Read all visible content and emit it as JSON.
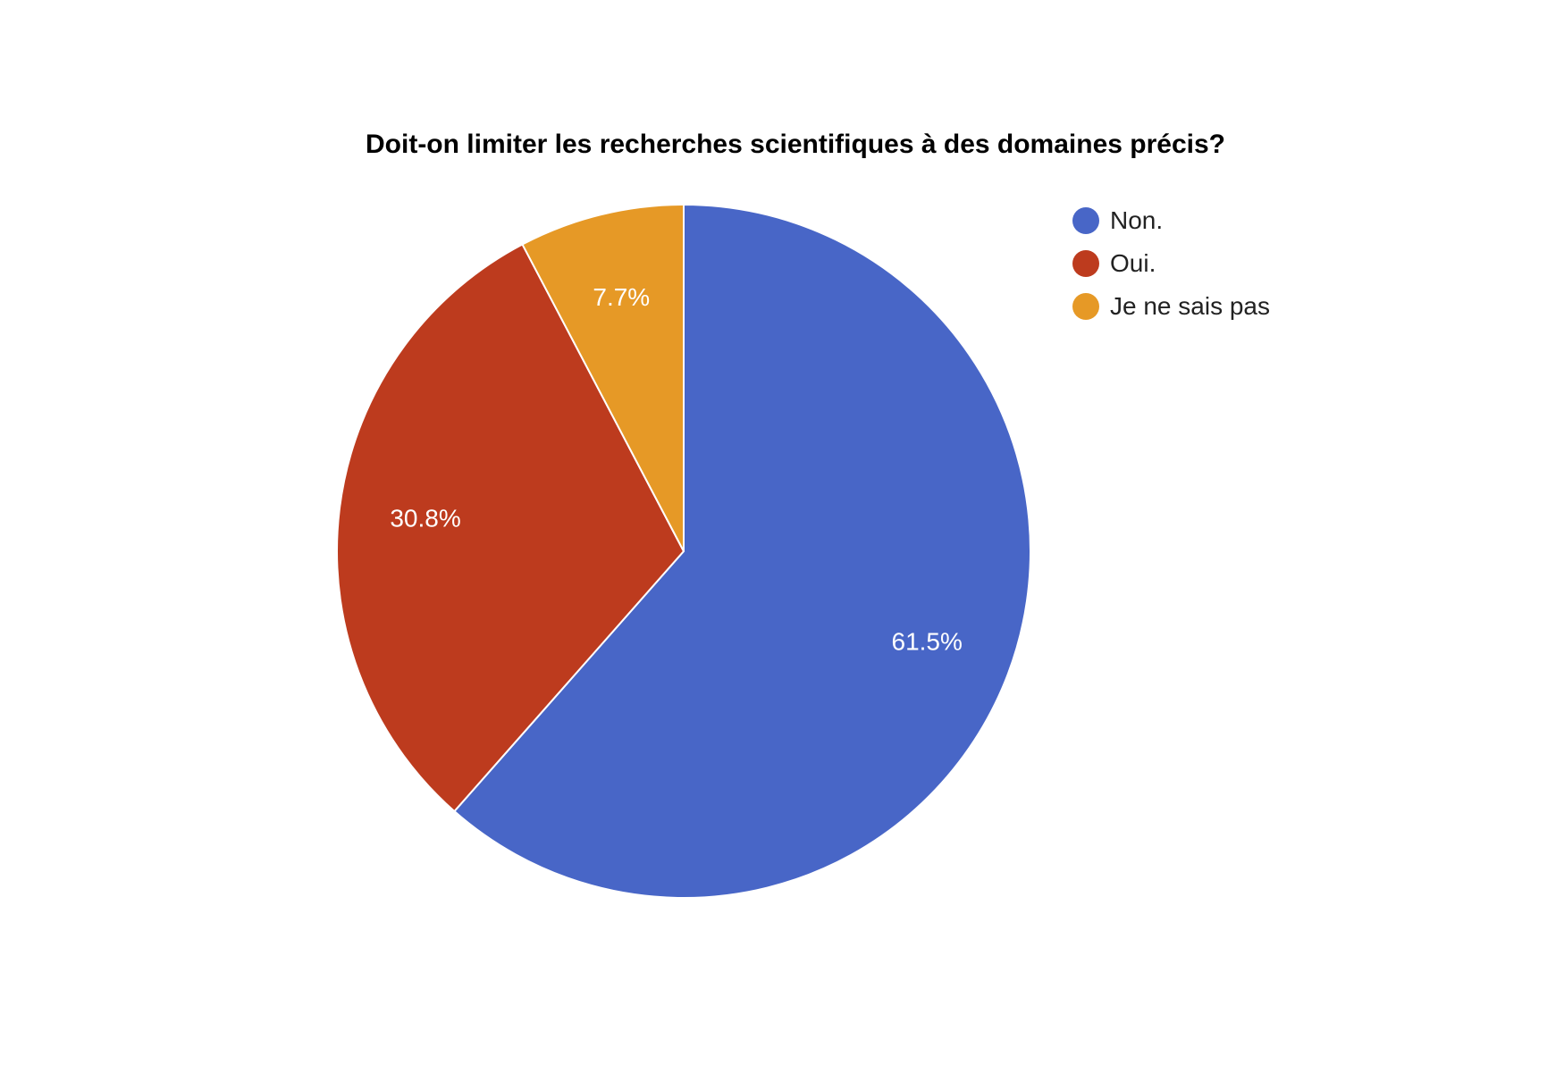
{
  "chart_data": {
    "type": "pie",
    "title": "Doit-on limiter les recherches scientifiques à des domaines précis?",
    "slices": [
      {
        "label": "Non.",
        "value": 61.5,
        "value_label": "61.5%",
        "color": "#4866C7"
      },
      {
        "label": "Oui.",
        "value": 30.8,
        "value_label": "30.8%",
        "color": "#BD3B1E"
      },
      {
        "label": "Je ne sais pas",
        "value": 7.7,
        "value_label": "7.7%",
        "color": "#E69926"
      }
    ],
    "legend_position": "right"
  }
}
